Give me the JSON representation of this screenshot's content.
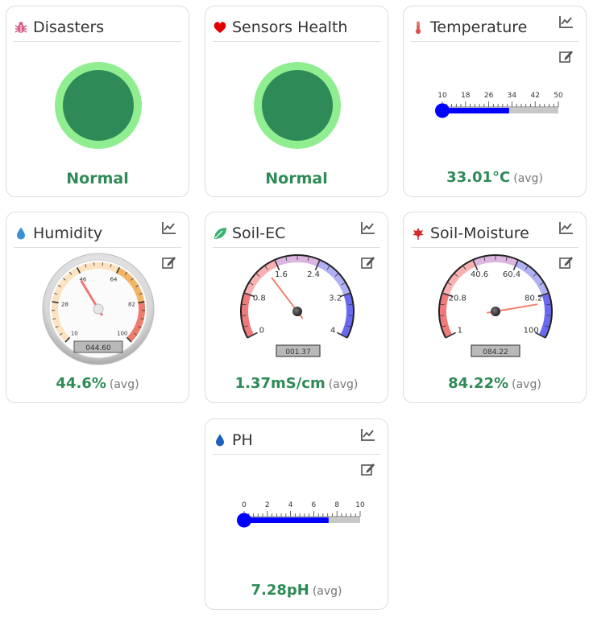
{
  "colors": {
    "status_green": "#2e8b57",
    "ring_green": "#90ee90",
    "thermo_blue": "#0000ff"
  },
  "disasters": {
    "title": "Disasters",
    "icon": "bug-icon",
    "status": "Normal"
  },
  "sensors_health": {
    "title": "Sensors Health",
    "icon": "heart-icon",
    "status": "Normal"
  },
  "temperature": {
    "title": "Temperature",
    "icon": "thermometer-icon",
    "value": "33.01°C",
    "avg_label": "(avg)",
    "scale_ticks": [
      "10",
      "18",
      "26",
      "34",
      "42",
      "50"
    ],
    "scale_min": 10,
    "scale_max": 50,
    "reading": 33.01
  },
  "humidity": {
    "title": "Humidity",
    "icon": "water-drop-icon",
    "value": "44.6%",
    "avg_label": "(avg)",
    "gauge_ticks": [
      "10",
      "28",
      "46",
      "64",
      "82",
      "100"
    ],
    "display": "044.60",
    "reading": 44.6,
    "min": 10,
    "max": 100
  },
  "soil_ec": {
    "title": "Soil-EC",
    "icon": "leaf-icon",
    "value": "1.37mS/cm",
    "avg_label": "(avg)",
    "gauge_ticks": [
      "0",
      "0.8",
      "1.6",
      "2.4",
      "3.2",
      "4"
    ],
    "display": "001.37",
    "reading": 1.37,
    "min": 0,
    "max": 4
  },
  "soil_moisture": {
    "title": "Soil-Moisture",
    "icon": "plant-icon",
    "value": "84.22%",
    "avg_label": "(avg)",
    "gauge_ticks": [
      "1",
      "20.8",
      "40.6",
      "60.4",
      "80.2",
      "100"
    ],
    "display": "084.22",
    "reading": 84.22,
    "min": 1,
    "max": 100
  },
  "ph": {
    "title": "PH",
    "icon": "water-drop-icon",
    "value": "7.28pH",
    "avg_label": "(avg)",
    "scale_ticks": [
      "0",
      "2",
      "4",
      "6",
      "8",
      "10"
    ],
    "scale_min": 0,
    "scale_max": 10,
    "reading": 7.28
  }
}
